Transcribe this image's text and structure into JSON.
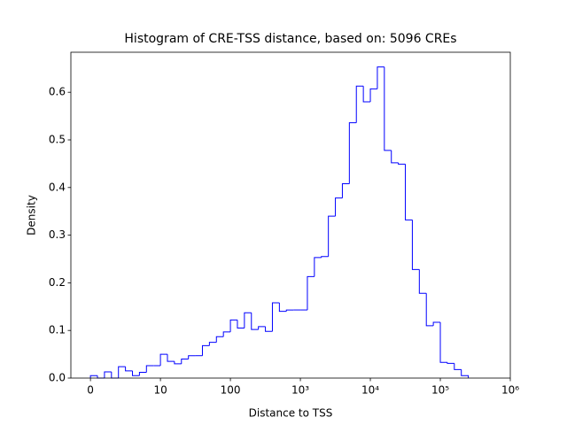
{
  "chart_data": {
    "type": "histogram",
    "title": "Histogram of CRE-TSS distance, based on: 5096 CREs",
    "xlabel": "Distance to TSS",
    "ylabel": "Density",
    "bins": [
      0,
      0.1,
      0.2,
      0.3,
      0.4,
      0.5,
      0.6,
      0.7,
      0.8,
      0.9,
      1,
      1.1,
      1.2,
      1.3,
      1.4,
      1.5,
      1.6,
      1.7,
      1.8,
      1.9,
      2,
      2.1,
      2.2,
      2.3,
      2.4,
      2.5,
      2.6,
      2.7,
      2.8,
      2.9,
      3,
      3.1,
      3.2,
      3.3,
      3.4,
      3.5,
      3.6,
      3.7,
      3.8,
      3.9,
      4,
      4.1,
      4.2,
      4.3,
      4.4,
      4.5,
      4.6,
      4.7,
      4.8,
      4.9,
      5,
      5.1,
      5.2,
      5.3,
      5.4
    ],
    "values": [
      0.005,
      0,
      0.013,
      0,
      0.024,
      0.015,
      0.005,
      0.012,
      0.026,
      0.026,
      0.05,
      0.035,
      0.03,
      0.04,
      0.047,
      0.047,
      0.068,
      0.075,
      0.087,
      0.097,
      0.122,
      0.105,
      0.137,
      0.102,
      0.108,
      0.098,
      0.158,
      0.14,
      0.143,
      0.143,
      0.143,
      0.213,
      0.253,
      0.255,
      0.34,
      0.378,
      0.408,
      0.536,
      0.613,
      0.58,
      0.607,
      0.653,
      0.478,
      0.452,
      0.449,
      0.332,
      0.228,
      0.178,
      0.11,
      0.117,
      0.033,
      0.031,
      0.018,
      0.005
    ],
    "color": "#0000ff",
    "xlim": [
      -0.28,
      6.0
    ],
    "xticks": [
      0,
      {
        "value": 1,
        "label": "10"
      },
      {
        "value": 2,
        "label": "100"
      },
      {
        "value": 3,
        "label": "10³"
      },
      {
        "value": 4,
        "label": "10⁴"
      },
      {
        "value": 5,
        "label": "10⁵"
      },
      {
        "value": 6,
        "label": "10⁶"
      }
    ],
    "ylim": [
      0,
      0.684
    ],
    "yticks": [
      {
        "value": 0,
        "label": "0.0"
      },
      0.1,
      0.2,
      0.3,
      0.4,
      0.5,
      0.6
    ],
    "grid": false
  }
}
